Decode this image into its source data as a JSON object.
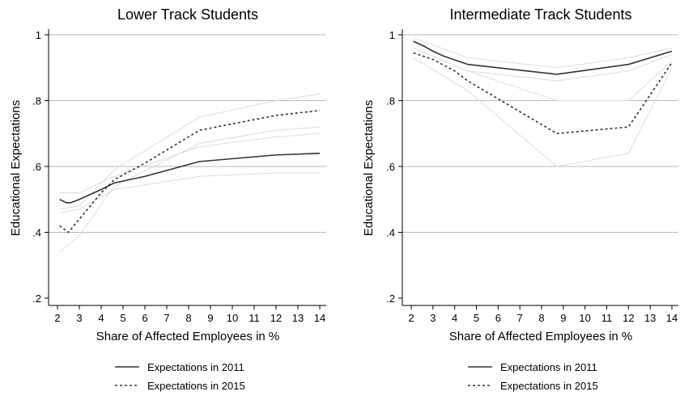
{
  "chart_data": [
    {
      "type": "line",
      "title": "Lower Track Students",
      "xlabel": "Share of Affected Employees in %",
      "ylabel": "Educational Expectations",
      "xlim": [
        2,
        14
      ],
      "ylim": [
        0.2,
        1
      ],
      "x_ticks": [
        2,
        3,
        4,
        5,
        6,
        7,
        8,
        9,
        10,
        11,
        12,
        13,
        14
      ],
      "y_ticks": [
        0.2,
        0.4,
        0.6,
        0.8,
        1
      ],
      "y_tick_labels": [
        ".2",
        ".4",
        ".6",
        ".8",
        "1"
      ],
      "grid": "horizontal",
      "series": [
        {
          "name": "Expectations in 2011",
          "style": "solid",
          "color": "#333333",
          "x": [
            2.1,
            2.4,
            2.6,
            3.0,
            4.0,
            4.6,
            6.0,
            8.5,
            12.0,
            14.0
          ],
          "y": [
            0.5,
            0.49,
            0.49,
            0.5,
            0.53,
            0.55,
            0.57,
            0.615,
            0.635,
            0.64
          ]
        },
        {
          "name": "Expectations in 2015",
          "style": "dashed",
          "color": "#333333",
          "x": [
            2.1,
            2.5,
            3.0,
            4.0,
            4.6,
            6.0,
            8.5,
            12.0,
            14.0
          ],
          "y": [
            0.42,
            0.4,
            0.44,
            0.52,
            0.56,
            0.61,
            0.71,
            0.755,
            0.77
          ]
        }
      ],
      "ci_bands": [
        {
          "x": [
            2.1,
            3.0,
            4.6,
            8.5,
            12.0,
            14.0
          ],
          "upper": [
            0.52,
            0.52,
            0.57,
            0.66,
            0.69,
            0.7
          ],
          "lower": [
            0.46,
            0.47,
            0.53,
            0.57,
            0.58,
            0.58
          ]
        },
        {
          "x": [
            2.1,
            3.0,
            4.6,
            8.5,
            12.0,
            14.0
          ],
          "upper": [
            0.47,
            0.48,
            0.59,
            0.75,
            0.8,
            0.82
          ],
          "lower": [
            0.34,
            0.39,
            0.54,
            0.67,
            0.71,
            0.72
          ]
        }
      ]
    },
    {
      "type": "line",
      "title": "Intermediate Track Students",
      "xlabel": "Share of Affected Employees in %",
      "ylabel": "Educational Expectations",
      "xlim": [
        2,
        14
      ],
      "ylim": [
        0.2,
        1
      ],
      "x_ticks": [
        2,
        3,
        4,
        5,
        6,
        7,
        8,
        9,
        10,
        11,
        12,
        13,
        14
      ],
      "y_ticks": [
        0.2,
        0.4,
        0.6,
        0.8,
        1
      ],
      "y_tick_labels": [
        ".2",
        ".4",
        ".6",
        ".8",
        "1"
      ],
      "grid": "horizontal",
      "series": [
        {
          "name": "Expectations in 2011",
          "style": "solid",
          "color": "#333333",
          "x": [
            2.1,
            2.6,
            3.0,
            3.5,
            4.6,
            8.7,
            12.0,
            14.0
          ],
          "y": [
            0.98,
            0.965,
            0.95,
            0.935,
            0.91,
            0.88,
            0.91,
            0.95
          ]
        },
        {
          "name": "Expectations in 2015",
          "style": "dashed",
          "color": "#333333",
          "x": [
            2.1,
            3.0,
            4.0,
            4.6,
            8.7,
            12.0,
            14.0
          ],
          "y": [
            0.945,
            0.925,
            0.89,
            0.86,
            0.7,
            0.72,
            0.915
          ]
        }
      ],
      "ci_bands": [
        {
          "x": [
            2.1,
            4.6,
            8.7,
            12.0,
            14.0
          ],
          "upper": [
            0.99,
            0.93,
            0.9,
            0.93,
            0.96
          ],
          "lower": [
            0.96,
            0.89,
            0.86,
            0.89,
            0.94
          ]
        },
        {
          "x": [
            2.1,
            4.6,
            8.7,
            12.0,
            14.0
          ],
          "upper": [
            0.96,
            0.89,
            0.8,
            0.8,
            0.92
          ],
          "lower": [
            0.93,
            0.83,
            0.6,
            0.64,
            0.9
          ]
        }
      ]
    }
  ]
}
